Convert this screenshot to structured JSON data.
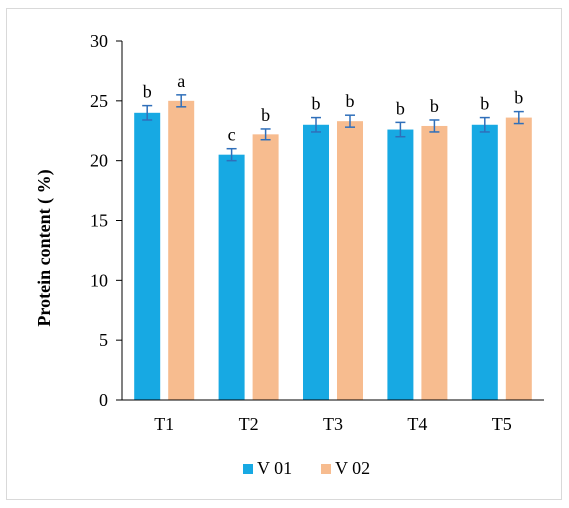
{
  "chart_data": {
    "type": "bar",
    "title": "",
    "xlabel": "",
    "ylabel": "Protein content ( %)",
    "ylim": [
      0,
      30
    ],
    "yticks": [
      0,
      5,
      10,
      15,
      20,
      25,
      30
    ],
    "grid": false,
    "legend_position": "bottom",
    "categories": [
      "T1",
      "T2",
      "T3",
      "T4",
      "T5"
    ],
    "series": [
      {
        "name": "V 01",
        "color": "#17a9e3",
        "values": [
          24.0,
          20.5,
          23.0,
          22.6,
          23.0
        ],
        "errors": [
          0.6,
          0.5,
          0.6,
          0.6,
          0.6
        ],
        "labels": [
          "b",
          "c",
          "b",
          "b",
          "b"
        ]
      },
      {
        "name": "V 02",
        "color": "#f7bc8f",
        "values": [
          25.0,
          22.2,
          23.3,
          22.9,
          23.6
        ],
        "errors": [
          0.5,
          0.45,
          0.5,
          0.5,
          0.5
        ],
        "labels": [
          "a",
          "b",
          "b",
          "b",
          "b"
        ]
      }
    ],
    "error_bar_color": "#2f6fba"
  }
}
